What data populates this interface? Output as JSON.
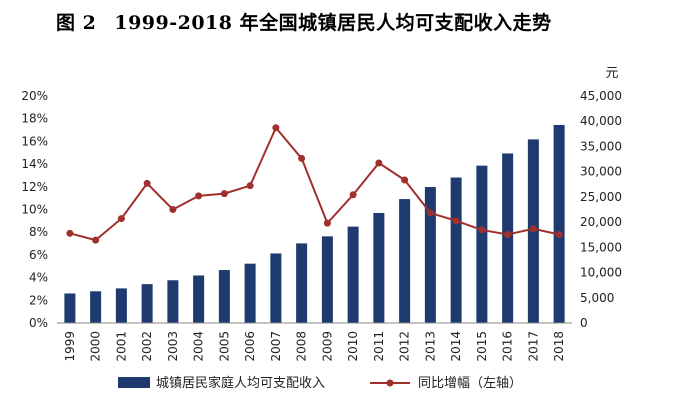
{
  "figure": {
    "label": "图 2",
    "title": "1999-2018 年全国城镇居民人均可支配收入走势"
  },
  "chart_data": {
    "type": "bar",
    "title": "1999-2018 年全国城镇居民人均可支配收入走势",
    "categories": [
      "1999",
      "2000",
      "2001",
      "2002",
      "2003",
      "2004",
      "2005",
      "2006",
      "2007",
      "2008",
      "2009",
      "2010",
      "2011",
      "2012",
      "2013",
      "2014",
      "2015",
      "2016",
      "2017",
      "2018"
    ],
    "series": [
      {
        "name": "城镇居民家庭人均可支配收入",
        "type": "bar",
        "axis": "right",
        "color": "#1F3A6E",
        "values": [
          5854,
          6280,
          6860,
          7703,
          8472,
          9422,
          10493,
          11759,
          13786,
          15781,
          17175,
          19109,
          21810,
          24565,
          26955,
          28844,
          31195,
          33616,
          36396,
          39251
        ]
      },
      {
        "name": "同比增幅（左轴）",
        "type": "line",
        "axis": "left",
        "color": "#A0302E",
        "values": [
          0.079,
          0.073,
          0.092,
          0.123,
          0.1,
          0.112,
          0.114,
          0.121,
          0.172,
          0.145,
          0.088,
          0.113,
          0.141,
          0.126,
          0.097,
          0.09,
          0.082,
          0.078,
          0.083,
          0.078
        ]
      }
    ],
    "left_axis": {
      "min": 0,
      "max": 0.2,
      "ticks": [
        "0%",
        "2%",
        "4%",
        "6%",
        "8%",
        "10%",
        "12%",
        "14%",
        "16%",
        "18%",
        "20%"
      ]
    },
    "right_axis": {
      "min": 0,
      "max": 45000,
      "unit": "元",
      "ticks": [
        "0",
        "5,000",
        "10,000",
        "15,000",
        "20,000",
        "25,000",
        "30,000",
        "35,000",
        "40,000",
        "45,000"
      ]
    },
    "legend": {
      "position": "bottom"
    }
  }
}
